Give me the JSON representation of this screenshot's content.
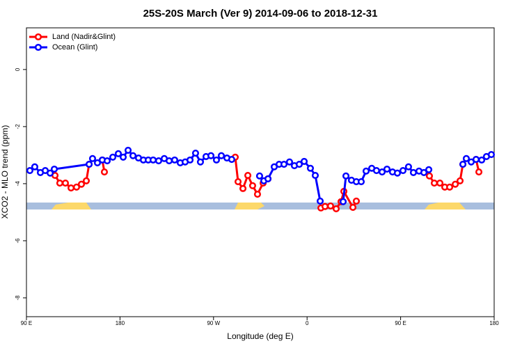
{
  "chart_data": {
    "type": "line",
    "title": "25S-20S March (Ver 9)   2014-09-06 to 2018-12-31",
    "x_label": "Longitude (deg E)",
    "y_label": "XCO2 - MLO trend (ppm)",
    "xlim": [
      90,
      540
    ],
    "ylim": [
      -8.66,
      1.46
    ],
    "xticks": [
      {
        "value": 90,
        "label": "90 E"
      },
      180,
      {
        "value": 270,
        "label": "90 W"
      },
      {
        "value": 360,
        "label": "0"
      },
      {
        "value": 450,
        "label": "90 E"
      },
      {
        "value": 540,
        "label": "180"
      }
    ],
    "yticks": [
      0,
      -2,
      -4,
      -6,
      -8
    ],
    "legend": "top-left",
    "series": [
      {
        "name": "Land (Nadir&Glint)",
        "color": "#ff0000",
        "x": [
          117.5,
          122.1,
          127.5,
          132.9,
          138.2,
          142.9,
          147.6,
          150.3,
          null,
          163.0,
          165.0,
          null,
          290.9,
          293.6,
          298.3,
          303.0,
          307.6,
          312.3,
          317.7,
          322.4,
          null,
          373.3,
          377.3,
          382.6,
          388.0,
          392.7,
          395.4,
          404.1,
          407.4,
          null,
          477.7,
          482.4,
          487.8,
          492.5,
          497.2,
          502.6,
          507.2,
          509.9,
          null,
          522.6,
          525.3
        ],
        "values": [
          -3.71,
          -3.98,
          -3.98,
          -4.15,
          -4.12,
          -4.02,
          -3.9,
          -3.32,
          null,
          -3.17,
          -3.59,
          null,
          -3.07,
          -3.93,
          -4.17,
          -3.71,
          -4.07,
          -4.37,
          -3.98,
          -3.83,
          null,
          -4.85,
          -4.8,
          -4.78,
          -4.88,
          -4.63,
          -4.27,
          -4.83,
          -4.61,
          null,
          -3.73,
          -3.98,
          -3.98,
          -4.12,
          -4.12,
          -4.02,
          -3.9,
          -3.32,
          null,
          -3.15,
          -3.59
        ]
      },
      {
        "name": "Ocean (Glint)",
        "color": "#0000ff",
        "x": [
          93.3,
          98.0,
          103.4,
          108.1,
          112.8,
          116.8,
          150.3,
          153.6,
          158.3,
          163.0,
          167.7,
          173.1,
          178.4,
          183.1,
          187.8,
          192.5,
          197.8,
          202.5,
          207.2,
          211.9,
          217.2,
          222.6,
          227.3,
          232.6,
          238.0,
          242.7,
          247.4,
          252.7,
          257.4,
          262.8,
          267.5,
          272.8,
          277.5,
          282.9,
          287.5,
          null,
          314.3,
          318.4,
          322.4,
          328.4,
          333.1,
          337.8,
          343.1,
          347.8,
          352.5,
          357.2,
          363.2,
          367.9,
          372.6,
          null,
          394.7,
          397.4,
          402.7,
          407.4,
          412.1,
          416.8,
          422.2,
          426.8,
          432.2,
          436.9,
          442.2,
          446.9,
          452.3,
          457.6,
          462.3,
          467.7,
          472.4,
          477.1,
          null,
          509.9,
          513.2,
          517.9,
          522.6,
          528.0,
          532.6,
          537.3
        ],
        "values": [
          -3.54,
          -3.41,
          -3.61,
          -3.54,
          -3.63,
          -3.49,
          -3.32,
          -3.12,
          -3.27,
          -3.17,
          -3.2,
          -3.07,
          -2.95,
          -3.07,
          -2.83,
          -3.02,
          -3.1,
          -3.17,
          -3.17,
          -3.17,
          -3.2,
          -3.12,
          -3.2,
          -3.17,
          -3.27,
          -3.24,
          -3.17,
          -2.93,
          -3.24,
          -3.05,
          -3.02,
          -3.17,
          -3.02,
          -3.1,
          -3.15,
          null,
          -3.73,
          -3.9,
          -3.83,
          -3.41,
          -3.32,
          -3.32,
          -3.24,
          -3.37,
          -3.32,
          -3.22,
          -3.46,
          -3.71,
          -4.61,
          null,
          -4.63,
          -3.73,
          -3.88,
          -3.93,
          -3.93,
          -3.56,
          -3.46,
          -3.54,
          -3.59,
          -3.49,
          -3.59,
          -3.63,
          -3.54,
          -3.41,
          -3.61,
          -3.56,
          -3.61,
          -3.51,
          null,
          -3.32,
          -3.12,
          -3.24,
          -3.15,
          -3.17,
          -3.05,
          -2.98
        ]
      }
    ]
  }
}
